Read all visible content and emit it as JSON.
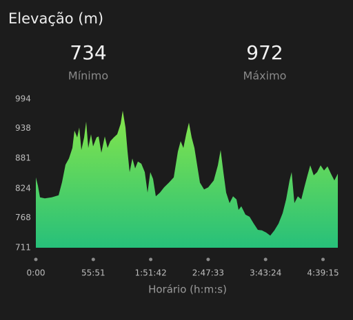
{
  "chart_data": {
    "type": "area",
    "title": "Elevação (m)",
    "stats": [
      {
        "value": 734,
        "label": "Mínimo"
      },
      {
        "value": 972,
        "label": "Máximo"
      }
    ],
    "x_label": "Horário (h:m:s)",
    "x": [
      0,
      121,
      241,
      523,
      925,
      1328,
      1529,
      1730,
      1931,
      2132,
      2253,
      2414,
      2534,
      2655,
      2816,
      2937,
      3057,
      3218,
      3339,
      3540,
      3661,
      3822,
      4023,
      4184,
      4345,
      4546,
      4747,
      4948,
      5069,
      5230,
      5351,
      5471,
      5632,
      5793,
      5954,
      6155,
      6356,
      6517,
      6678,
      6839,
      7000,
      7241,
      7483,
      7764,
      8046,
      8287,
      8448,
      8609,
      8770,
      8931,
      9092,
      9253,
      9414,
      9575,
      9816,
      10058,
      10379,
      10621,
      10782,
      10943,
      11104,
      11305,
      11506,
      11707,
      11828,
      11989,
      12230,
      12471,
      12713,
      12954,
      13195,
      13436,
      13678,
      13919,
      14160,
      14402,
      14603,
      14804,
      14925,
      15086,
      15287,
      15488,
      15690,
      15851,
      16012,
      16213,
      16414,
      16615,
      16816,
      17017,
      17218,
      17419,
      17620
    ],
    "values": [
      845,
      829,
      807,
      805,
      807,
      811,
      836,
      869,
      881,
      901,
      934,
      921,
      940,
      897,
      921,
      951,
      901,
      927,
      904,
      921,
      923,
      892,
      923,
      901,
      914,
      921,
      927,
      947,
      972,
      940,
      894,
      855,
      881,
      862,
      875,
      871,
      855,
      816,
      855,
      842,
      809,
      816,
      826,
      835,
      845,
      894,
      914,
      901,
      927,
      949,
      921,
      901,
      868,
      835,
      822,
      826,
      839,
      868,
      897,
      855,
      816,
      796,
      809,
      803,
      783,
      790,
      774,
      770,
      757,
      745,
      744,
      740,
      734,
      744,
      757,
      777,
      803,
      839,
      855,
      796,
      809,
      803,
      829,
      849,
      868,
      849,
      855,
      868,
      858,
      866,
      852,
      839,
      852
    ],
    "colors": [
      "#86e64a",
      "#27c07a"
    ],
    "xlim": [
      0,
      17620
    ],
    "ylim": [
      711,
      994
    ],
    "yticks": [
      994,
      938,
      881,
      824,
      768,
      711
    ],
    "xticks": [
      {
        "value": 0,
        "label": "0:00"
      },
      {
        "value": 3351,
        "label": "55:51"
      },
      {
        "value": 6702,
        "label": "1:51:42"
      },
      {
        "value": 10053,
        "label": "2:47:33"
      },
      {
        "value": 13404,
        "label": "3:43:24"
      },
      {
        "value": 16755,
        "label": "4:39:15"
      }
    ],
    "grid": false
  }
}
